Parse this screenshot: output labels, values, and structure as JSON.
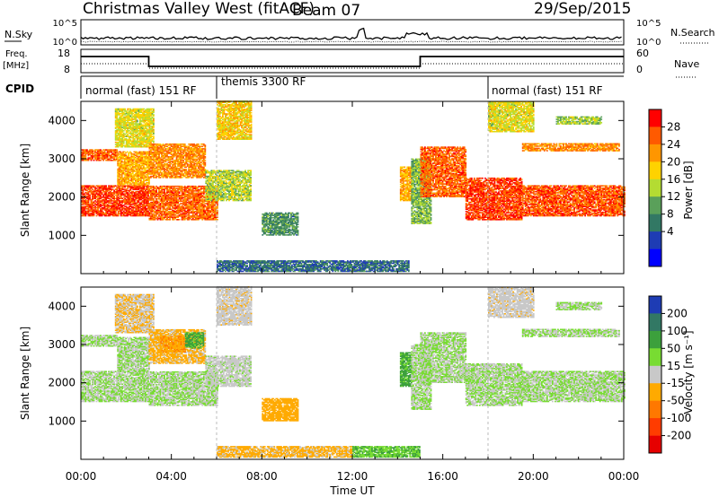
{
  "header": {
    "site": "Christmas Valley West (fitACF)",
    "beam": "Beam 07",
    "date": "29/Sep/2015"
  },
  "strips": {
    "nsky_label": "N.Sky",
    "nsky_ticks": [
      "10^5",
      "10^0"
    ],
    "nsearch_label": "N.Search",
    "nsearch_ticks": [
      "10^5",
      "10^0"
    ],
    "freq_label": "Freq.",
    "freq_unit": "[MHz]",
    "freq_ticks": [
      "18",
      "8"
    ],
    "nave_label": "Nave",
    "nave_ticks": [
      "60",
      "0"
    ],
    "cpid_label": "CPID",
    "cpid_modes": [
      "normal (fast) 151 RF",
      "themis 3300 RF",
      "normal (fast) 151 RF"
    ]
  },
  "axes": {
    "x_ticks": [
      "00:00",
      "04:00",
      "08:00",
      "12:00",
      "16:00",
      "20:00",
      "00:00"
    ],
    "xlabel": "Time UT",
    "ylabel": "Slant Range [km]",
    "y_ticks": [
      "1000",
      "2000",
      "3000",
      "4000"
    ]
  },
  "colorbars": {
    "power": {
      "label": "Power [dB]",
      "ticks": [
        "28",
        "24",
        "20",
        "16",
        "12",
        "8",
        "4"
      ],
      "colors": [
        "#ff0000",
        "#ff5a00",
        "#ff9600",
        "#ffd200",
        "#b4dc32",
        "#5aa05a",
        "#327864",
        "#1e3cb4",
        "#0000ff"
      ]
    },
    "velocity": {
      "label": "Velocity [m s⁻¹]",
      "ticks": [
        "200",
        "100",
        "50",
        "15",
        "-15",
        "-50",
        "-100",
        "-200"
      ],
      "colors": [
        "#1e3cb4",
        "#327864",
        "#3ca03c",
        "#78dc32",
        "#c8c8c8",
        "#ffaa00",
        "#ff7800",
        "#ff3c00",
        "#e60000"
      ]
    }
  },
  "chart_data": [
    {
      "type": "heatmap",
      "name": "power",
      "xlabel": "Time UT",
      "ylabel": "Slant Range [km]",
      "xlim": [
        0,
        24
      ],
      "ylim": [
        0,
        4500
      ],
      "zlim": [
        0,
        32
      ],
      "regions": [
        {
          "t0": 0.0,
          "t1": 3.0,
          "r0": 1500,
          "r1": 2300,
          "level": 28
        },
        {
          "t0": 0.0,
          "t1": 1.6,
          "r0": 2950,
          "r1": 3250,
          "level": 26
        },
        {
          "t0": 1.6,
          "t1": 3.0,
          "r0": 2300,
          "r1": 3200,
          "level": 22
        },
        {
          "t0": 1.5,
          "t1": 3.2,
          "r0": 3300,
          "r1": 4300,
          "level": 18
        },
        {
          "t0": 3.0,
          "t1": 6.0,
          "r0": 1400,
          "r1": 2300,
          "level": 26
        },
        {
          "t0": 3.0,
          "t1": 5.5,
          "r0": 2500,
          "r1": 3400,
          "level": 24
        },
        {
          "t0": 5.5,
          "t1": 7.5,
          "r0": 1900,
          "r1": 2700,
          "level": 16
        },
        {
          "t0": 6.0,
          "t1": 7.5,
          "r0": 3500,
          "r1": 4500,
          "level": 20
        },
        {
          "t0": 8.0,
          "t1": 9.6,
          "r0": 1000,
          "r1": 1600,
          "level": 11
        },
        {
          "t0": 6.0,
          "t1": 14.5,
          "r0": 50,
          "r1": 350,
          "level": 8
        },
        {
          "t0": 14.1,
          "t1": 14.6,
          "r0": 1900,
          "r1": 2800,
          "level": 22
        },
        {
          "t0": 14.6,
          "t1": 15.5,
          "r0": 1300,
          "r1": 3000,
          "level": 14
        },
        {
          "t0": 15.0,
          "t1": 17.0,
          "r0": 2000,
          "r1": 3300,
          "level": 26
        },
        {
          "t0": 17.0,
          "t1": 19.5,
          "r0": 1400,
          "r1": 2500,
          "level": 28
        },
        {
          "t0": 19.5,
          "t1": 24.0,
          "r0": 1500,
          "r1": 2300,
          "level": 27
        },
        {
          "t0": 18.0,
          "t1": 20.0,
          "r0": 3700,
          "r1": 4500,
          "level": 18
        },
        {
          "t0": 19.5,
          "t1": 23.8,
          "r0": 3200,
          "r1": 3400,
          "level": 24
        },
        {
          "t0": 21.0,
          "t1": 23.0,
          "r0": 3900,
          "r1": 4100,
          "level": 15
        }
      ]
    },
    {
      "type": "heatmap",
      "name": "velocity",
      "xlabel": "Time UT",
      "ylabel": "Slant Range [km]",
      "xlim": [
        0,
        24
      ],
      "ylim": [
        0,
        4500
      ],
      "zlim": [
        -200,
        200
      ],
      "regions": [
        {
          "t0": 0.0,
          "t1": 3.0,
          "r0": 1500,
          "r1": 2300,
          "level": 0
        },
        {
          "t0": 0.0,
          "t1": 1.6,
          "r0": 2950,
          "r1": 3250,
          "level": 0
        },
        {
          "t0": 1.6,
          "t1": 3.0,
          "r0": 2300,
          "r1": 3200,
          "level": 0
        },
        {
          "t0": 1.5,
          "t1": 3.2,
          "r0": 3300,
          "r1": 4300,
          "level": -30
        },
        {
          "t0": 3.0,
          "t1": 6.0,
          "r0": 1400,
          "r1": 2300,
          "level": 0
        },
        {
          "t0": 3.0,
          "t1": 5.5,
          "r0": 2500,
          "r1": 3400,
          "level": -40
        },
        {
          "t0": 3.5,
          "t1": 4.6,
          "r0": 2800,
          "r1": 3200,
          "level": -70
        },
        {
          "t0": 4.6,
          "t1": 5.4,
          "r0": 2900,
          "r1": 3300,
          "level": 40
        },
        {
          "t0": 5.5,
          "t1": 7.5,
          "r0": 1900,
          "r1": 2700,
          "level": -10
        },
        {
          "t0": 6.0,
          "t1": 7.5,
          "r0": 3500,
          "r1": 4500,
          "level": -20
        },
        {
          "t0": 8.0,
          "t1": 9.6,
          "r0": 1000,
          "r1": 1600,
          "level": -60
        },
        {
          "t0": 6.0,
          "t1": 12.0,
          "r0": 50,
          "r1": 350,
          "level": -40
        },
        {
          "t0": 12.0,
          "t1": 15.0,
          "r0": 50,
          "r1": 350,
          "level": 30
        },
        {
          "t0": 14.1,
          "t1": 14.6,
          "r0": 1900,
          "r1": 2800,
          "level": 40
        },
        {
          "t0": 14.6,
          "t1": 15.5,
          "r0": 1300,
          "r1": 3000,
          "level": 0
        },
        {
          "t0": 15.0,
          "t1": 17.0,
          "r0": 2000,
          "r1": 3300,
          "level": 0
        },
        {
          "t0": 17.0,
          "t1": 19.5,
          "r0": 1400,
          "r1": 2500,
          "level": 0
        },
        {
          "t0": 19.5,
          "t1": 24.0,
          "r0": 1500,
          "r1": 2300,
          "level": 0
        },
        {
          "t0": 18.0,
          "t1": 20.0,
          "r0": 3700,
          "r1": 4500,
          "level": -20
        },
        {
          "t0": 19.5,
          "t1": 23.8,
          "r0": 3200,
          "r1": 3400,
          "level": 0
        },
        {
          "t0": 21.0,
          "t1": 23.0,
          "r0": 3900,
          "r1": 4100,
          "level": 0
        }
      ]
    }
  ]
}
